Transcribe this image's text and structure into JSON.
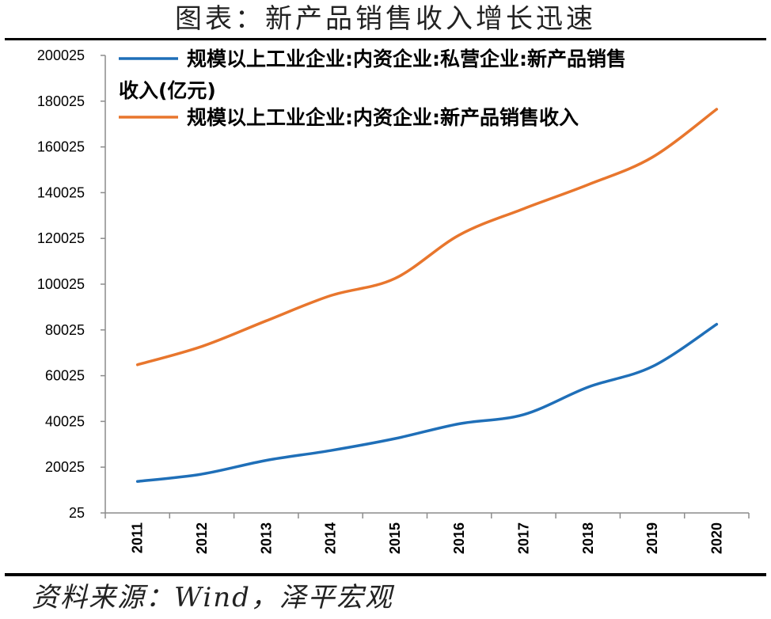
{
  "title": "图表：新产品销售收入增长迅速",
  "source": "资料来源：Wind，泽平宏观",
  "chart_data": {
    "type": "line",
    "x": [
      "2011",
      "2012",
      "2013",
      "2014",
      "2015",
      "2016",
      "2017",
      "2018",
      "2019",
      "2020"
    ],
    "y_ticks": [
      "200025",
      "180025",
      "160025",
      "140025",
      "120025",
      "100025",
      "80025",
      "60025",
      "40025",
      "20025",
      "25"
    ],
    "ylim": [
      25,
      200025
    ],
    "grid": false,
    "legend_position": "top-left",
    "series": [
      {
        "name_line1": "规模以上工业企业:内资企业:私营企业:新产品销售",
        "name_line2": "收入(亿元)",
        "color": "#1f6fb8",
        "values": [
          13800,
          17000,
          23000,
          27300,
          32500,
          39000,
          43000,
          55000,
          64000,
          82500
        ]
      },
      {
        "name_line1": "规模以上工业企业:内资企业:新产品销售收入",
        "name_line2": "",
        "color": "#e8762d",
        "values": [
          64800,
          72800,
          84000,
          95000,
          102500,
          121500,
          133000,
          143500,
          155500,
          176500
        ]
      }
    ]
  }
}
